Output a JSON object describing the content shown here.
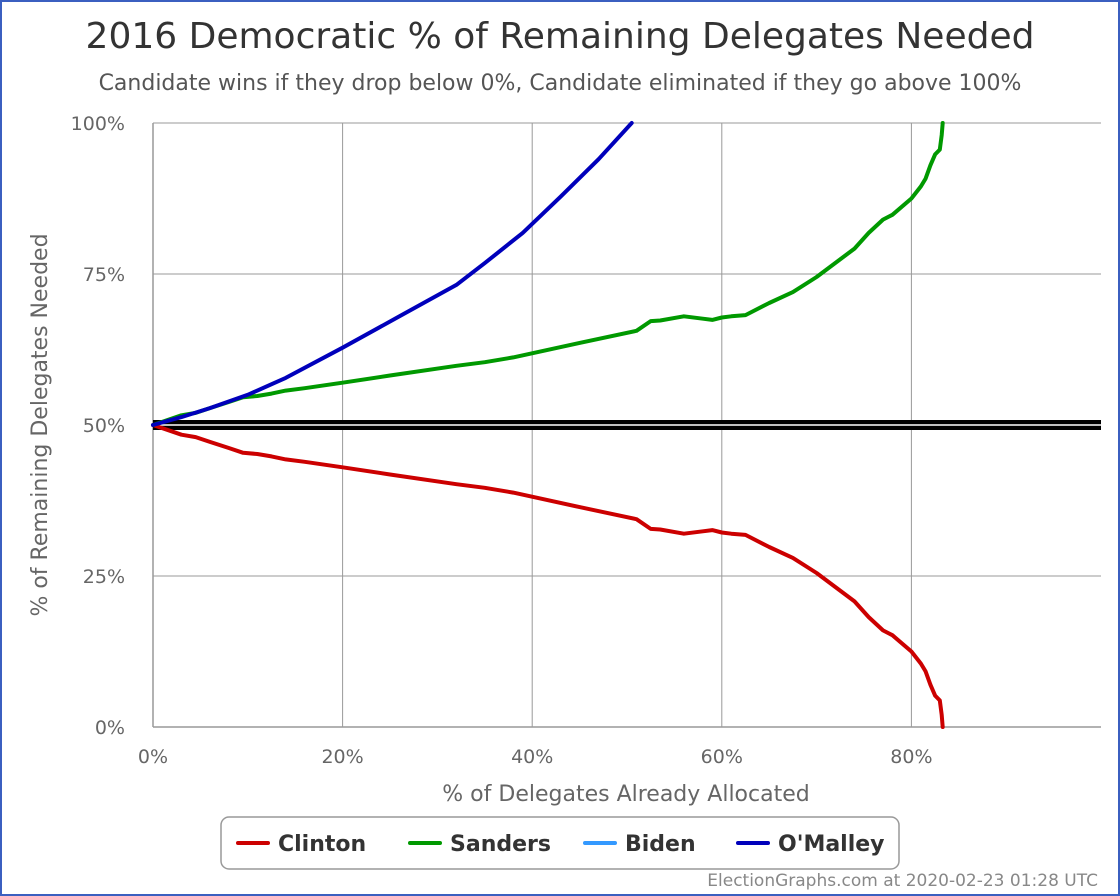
{
  "chart_data": {
    "type": "line",
    "title": "2016 Democratic % of Remaining Delegates Needed",
    "subtitle": "Candidate wins if they drop below 0%, Candidate eliminated if they go above 100%",
    "xlabel": "% of Delegates Already Allocated",
    "ylabel": "% of Remaining Delegates Needed",
    "xlim": [
      0,
      100
    ],
    "ylim": [
      0,
      100
    ],
    "x_ticks": [
      "0%",
      "20%",
      "40%",
      "60%",
      "80%"
    ],
    "x_tick_values": [
      0,
      20,
      40,
      60,
      80
    ],
    "y_ticks": [
      "0%",
      "25%",
      "50%",
      "75%",
      "100%"
    ],
    "y_tick_values": [
      0,
      25,
      50,
      75,
      100
    ],
    "grid": true,
    "threshold_line": 50,
    "legend_position": "bottom-center",
    "credit": "ElectionGraphs.com at 2020-02-23 01:28 UTC",
    "series": [
      {
        "name": "Clinton",
        "color": "#cc0000",
        "points": [
          [
            0,
            50
          ],
          [
            1.5,
            49.2
          ],
          [
            3,
            48.4
          ],
          [
            4.5,
            48
          ],
          [
            6,
            47.2
          ],
          [
            8,
            46.2
          ],
          [
            9.5,
            45.4
          ],
          [
            11,
            45.2
          ],
          [
            12.5,
            44.8
          ],
          [
            14,
            44.3
          ],
          [
            16,
            43.9
          ],
          [
            20,
            43
          ],
          [
            25,
            41.8
          ],
          [
            32,
            40.2
          ],
          [
            35,
            39.6
          ],
          [
            38,
            38.8
          ],
          [
            39.5,
            38.3
          ],
          [
            45,
            36.4
          ],
          [
            51,
            34.4
          ],
          [
            52.5,
            32.8
          ],
          [
            53.5,
            32.7
          ],
          [
            56,
            32
          ],
          [
            58,
            32.4
          ],
          [
            59,
            32.6
          ],
          [
            60,
            32.2
          ],
          [
            61,
            32
          ],
          [
            62.5,
            31.8
          ],
          [
            65,
            29.8
          ],
          [
            67.5,
            28
          ],
          [
            70,
            25.5
          ],
          [
            74,
            20.8
          ],
          [
            75.5,
            18.2
          ],
          [
            77,
            16
          ],
          [
            78,
            15.2
          ],
          [
            80,
            12.5
          ],
          [
            81,
            10.5
          ],
          [
            81.5,
            9.2
          ],
          [
            82,
            7
          ],
          [
            82.5,
            5.2
          ],
          [
            83,
            4.4
          ],
          [
            83.2,
            2
          ],
          [
            83.3,
            0
          ]
        ]
      },
      {
        "name": "Sanders",
        "color": "#009900",
        "points": [
          [
            0,
            50
          ],
          [
            1.5,
            50.8
          ],
          [
            3,
            51.6
          ],
          [
            4.5,
            52
          ],
          [
            6,
            52.8
          ],
          [
            8,
            53.8
          ],
          [
            9.5,
            54.6
          ],
          [
            11,
            54.8
          ],
          [
            12.5,
            55.2
          ],
          [
            14,
            55.7
          ],
          [
            16,
            56.1
          ],
          [
            20,
            57
          ],
          [
            25,
            58.2
          ],
          [
            32,
            59.8
          ],
          [
            35,
            60.4
          ],
          [
            38,
            61.2
          ],
          [
            39.5,
            61.7
          ],
          [
            45,
            63.6
          ],
          [
            51,
            65.6
          ],
          [
            52.5,
            67.2
          ],
          [
            53.5,
            67.3
          ],
          [
            56,
            68
          ],
          [
            58,
            67.6
          ],
          [
            59,
            67.4
          ],
          [
            60,
            67.8
          ],
          [
            61,
            68
          ],
          [
            62.5,
            68.2
          ],
          [
            65,
            70.2
          ],
          [
            67.5,
            72
          ],
          [
            70,
            74.5
          ],
          [
            74,
            79.2
          ],
          [
            75.5,
            81.8
          ],
          [
            77,
            84
          ],
          [
            78,
            84.8
          ],
          [
            80,
            87.5
          ],
          [
            81,
            89.5
          ],
          [
            81.5,
            90.8
          ],
          [
            82,
            93
          ],
          [
            82.5,
            94.8
          ],
          [
            83,
            95.6
          ],
          [
            83.2,
            98
          ],
          [
            83.3,
            100
          ]
        ]
      },
      {
        "name": "Biden",
        "color": "#3399ff",
        "points": []
      },
      {
        "name": "O'Malley",
        "color": "#0000bb",
        "points": [
          [
            0,
            50
          ],
          [
            3,
            51.3
          ],
          [
            6,
            52.8
          ],
          [
            10,
            55
          ],
          [
            14,
            57.8
          ],
          [
            20,
            62.8
          ],
          [
            26,
            68
          ],
          [
            32,
            73.2
          ],
          [
            35,
            76.8
          ],
          [
            39,
            81.8
          ],
          [
            43,
            87.8
          ],
          [
            47,
            94
          ],
          [
            50.5,
            100
          ]
        ]
      }
    ]
  }
}
